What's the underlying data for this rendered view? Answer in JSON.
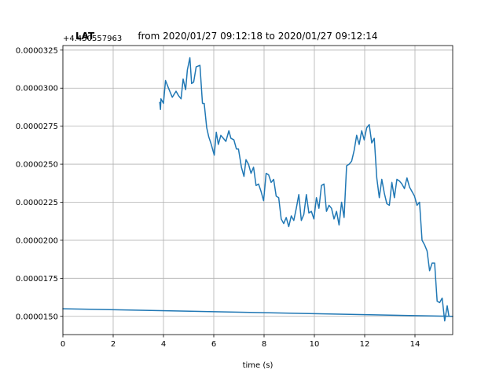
{
  "chart_data": {
    "type": "line",
    "title": "from 2020/01/27 09:12:18 to 2020/01/27 09:12:14",
    "title_overlay": "LAT",
    "xlabel": "time (s)",
    "ylabel": "",
    "y_offset_text": "+4.450557963",
    "xlim": [
      0,
      15.5
    ],
    "ylim": [
      1.38e-05,
      3.28e-05
    ],
    "grid": true,
    "x_ticks": [
      0,
      2,
      4,
      6,
      8,
      10,
      12,
      14
    ],
    "x_tick_labels": [
      "0",
      "2",
      "4",
      "6",
      "8",
      "10",
      "12",
      "14"
    ],
    "y_ticks": [
      1.5e-05,
      1.75e-05,
      2e-05,
      2.25e-05,
      2.5e-05,
      2.75e-05,
      3e-05,
      3.25e-05
    ],
    "y_tick_labels": [
      "0.0000150",
      "0.0000175",
      "0.0000200",
      "0.0000225",
      "0.0000250",
      "0.0000275",
      "0.0000300",
      "0.0000325"
    ],
    "line_color": "#1f77b4",
    "series": [
      {
        "x": [
          3.85,
          3.88,
          3.9,
          4.0,
          4.08,
          4.2,
          4.35,
          4.5,
          4.6,
          4.7,
          4.78,
          4.88,
          4.95,
          5.05,
          5.12,
          5.2,
          5.3,
          5.45,
          5.55,
          5.62,
          5.72,
          5.8,
          5.9,
          6.02,
          6.1,
          6.18,
          6.28,
          6.38,
          6.48,
          6.6,
          6.68,
          6.8,
          6.9,
          6.98,
          7.1,
          7.2,
          7.28,
          7.38,
          7.48,
          7.58,
          7.68,
          7.78,
          7.88,
          7.98,
          8.08,
          8.18,
          8.28,
          8.38,
          8.48,
          8.58,
          8.68,
          8.78,
          8.88,
          8.98,
          9.08,
          9.18,
          9.28,
          9.38,
          9.48,
          9.58,
          9.68,
          9.78,
          9.88,
          9.98,
          10.08,
          10.18,
          10.28,
          10.38,
          10.48,
          10.58,
          10.68,
          10.78,
          10.88,
          10.98,
          11.08,
          11.18,
          11.28,
          11.38,
          11.48,
          11.58,
          11.68,
          11.78,
          11.88,
          11.98,
          12.08,
          12.18,
          12.28,
          12.38,
          12.48,
          12.58,
          12.68,
          12.78,
          12.88,
          12.98,
          13.08,
          13.18,
          13.28,
          13.38,
          13.48,
          13.58,
          13.68,
          13.78,
          13.88,
          13.98,
          14.08,
          14.18,
          14.28,
          14.38,
          14.48,
          14.58,
          14.68,
          14.78,
          14.88,
          14.98,
          15.08,
          15.18,
          15.28,
          15.35,
          15.42,
          15.5,
          0.0,
          15.5
        ],
        "y": [
          2.91e-05,
          2.86e-05,
          2.93e-05,
          2.9e-05,
          3.05e-05,
          3e-05,
          2.94e-05,
          2.98e-05,
          2.95e-05,
          2.93e-05,
          3.06e-05,
          2.99e-05,
          3.12e-05,
          3.2e-05,
          3.03e-05,
          3.04e-05,
          3.14e-05,
          3.15e-05,
          2.9e-05,
          2.9e-05,
          2.74e-05,
          2.68e-05,
          2.63e-05,
          2.56e-05,
          2.71e-05,
          2.63e-05,
          2.69e-05,
          2.67e-05,
          2.65e-05,
          2.72e-05,
          2.67e-05,
          2.66e-05,
          2.6e-05,
          2.6e-05,
          2.48e-05,
          2.42e-05,
          2.53e-05,
          2.5e-05,
          2.44e-05,
          2.48e-05,
          2.36e-05,
          2.37e-05,
          2.32e-05,
          2.26e-05,
          2.44e-05,
          2.43e-05,
          2.38e-05,
          2.4e-05,
          2.29e-05,
          2.28e-05,
          2.14e-05,
          2.11e-05,
          2.15e-05,
          2.09e-05,
          2.16e-05,
          2.13e-05,
          2.21e-05,
          2.3e-05,
          2.13e-05,
          2.17e-05,
          2.3e-05,
          2.18e-05,
          2.19e-05,
          2.14e-05,
          2.28e-05,
          2.21e-05,
          2.36e-05,
          2.37e-05,
          2.19e-05,
          2.23e-05,
          2.21e-05,
          2.14e-05,
          2.19e-05,
          2.1e-05,
          2.25e-05,
          2.15e-05,
          2.49e-05,
          2.5e-05,
          2.52e-05,
          2.59e-05,
          2.69e-05,
          2.63e-05,
          2.72e-05,
          2.66e-05,
          2.74e-05,
          2.76e-05,
          2.64e-05,
          2.67e-05,
          2.41e-05,
          2.28e-05,
          2.4e-05,
          2.31e-05,
          2.24e-05,
          2.23e-05,
          2.38e-05,
          2.28e-05,
          2.4e-05,
          2.39e-05,
          2.37e-05,
          2.34e-05,
          2.41e-05,
          2.35e-05,
          2.32e-05,
          2.29e-05,
          2.23e-05,
          2.25e-05,
          2e-05,
          1.97e-05,
          1.93e-05,
          1.8e-05,
          1.85e-05,
          1.85e-05,
          1.6e-05,
          1.59e-05,
          1.62e-05,
          1.47e-05,
          1.57e-05,
          1.5e-05,
          1.5e-05,
          1.5e-05,
          1.55e-05,
          1.5e-05
        ]
      }
    ]
  }
}
